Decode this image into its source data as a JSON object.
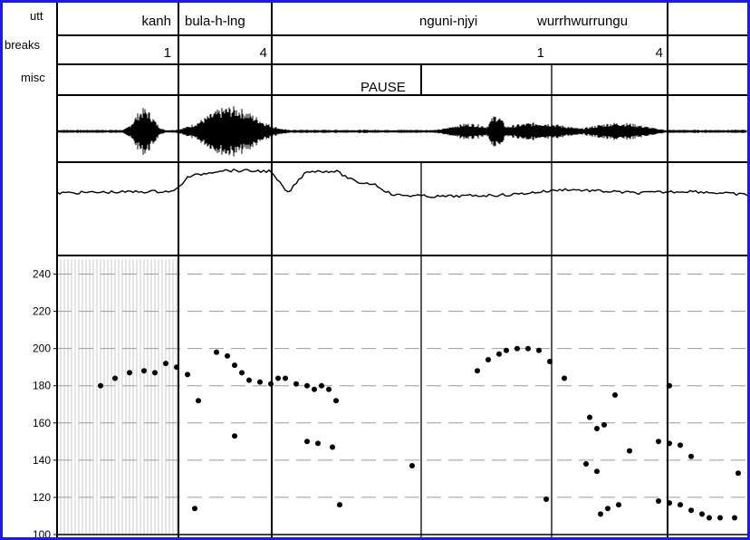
{
  "tiers": {
    "utt": "utt",
    "breaks": "breaks",
    "misc": "misc"
  },
  "utt_words": [
    "kanh",
    "bula-h-lng",
    "nguni-njyi",
    "wurrhwurrungu"
  ],
  "break_values": [
    "1",
    "4",
    "1",
    "4"
  ],
  "misc_label": "PAUSE",
  "chart_data": {
    "type": "scatter",
    "title": "",
    "xlabel": "",
    "ylabel": "",
    "ylim": [
      100,
      250
    ],
    "yticks": [
      100,
      120,
      140,
      160,
      180,
      200,
      220,
      240
    ],
    "grid": "dashed horizontal",
    "points": [
      [
        0.6,
        180
      ],
      [
        0.8,
        184
      ],
      [
        1.0,
        187
      ],
      [
        1.2,
        188
      ],
      [
        1.35,
        187
      ],
      [
        1.5,
        192
      ],
      [
        1.65,
        190
      ],
      [
        1.8,
        186
      ],
      [
        1.95,
        172
      ],
      [
        1.9,
        114
      ],
      [
        2.2,
        198
      ],
      [
        2.35,
        196
      ],
      [
        2.45,
        191
      ],
      [
        2.55,
        187
      ],
      [
        2.65,
        183
      ],
      [
        2.8,
        182
      ],
      [
        2.95,
        181
      ],
      [
        3.05,
        184
      ],
      [
        3.15,
        184
      ],
      [
        3.3,
        181
      ],
      [
        3.45,
        180
      ],
      [
        3.55,
        178
      ],
      [
        3.65,
        180
      ],
      [
        3.75,
        178
      ],
      [
        3.85,
        172
      ],
      [
        2.45,
        153
      ],
      [
        3.45,
        150
      ],
      [
        3.6,
        149
      ],
      [
        3.8,
        147
      ],
      [
        3.9,
        116
      ],
      [
        4.9,
        137
      ],
      [
        5.8,
        188
      ],
      [
        5.95,
        194
      ],
      [
        6.1,
        197
      ],
      [
        6.2,
        199
      ],
      [
        6.35,
        200
      ],
      [
        6.5,
        200
      ],
      [
        6.65,
        199
      ],
      [
        6.8,
        193
      ],
      [
        7.0,
        184
      ],
      [
        6.75,
        119
      ],
      [
        7.35,
        163
      ],
      [
        7.45,
        157
      ],
      [
        7.55,
        159
      ],
      [
        7.3,
        138
      ],
      [
        7.45,
        134
      ],
      [
        7.7,
        175
      ],
      [
        7.5,
        111
      ],
      [
        7.6,
        114
      ],
      [
        7.75,
        116
      ],
      [
        7.9,
        145
      ],
      [
        8.45,
        180
      ],
      [
        8.3,
        150
      ],
      [
        8.45,
        149
      ],
      [
        8.6,
        148
      ],
      [
        8.75,
        142
      ],
      [
        8.3,
        118
      ],
      [
        8.45,
        117
      ],
      [
        8.6,
        116
      ],
      [
        8.75,
        113
      ],
      [
        8.9,
        111
      ],
      [
        9.0,
        109
      ],
      [
        9.15,
        109
      ],
      [
        9.35,
        109
      ],
      [
        9.4,
        133
      ]
    ]
  }
}
